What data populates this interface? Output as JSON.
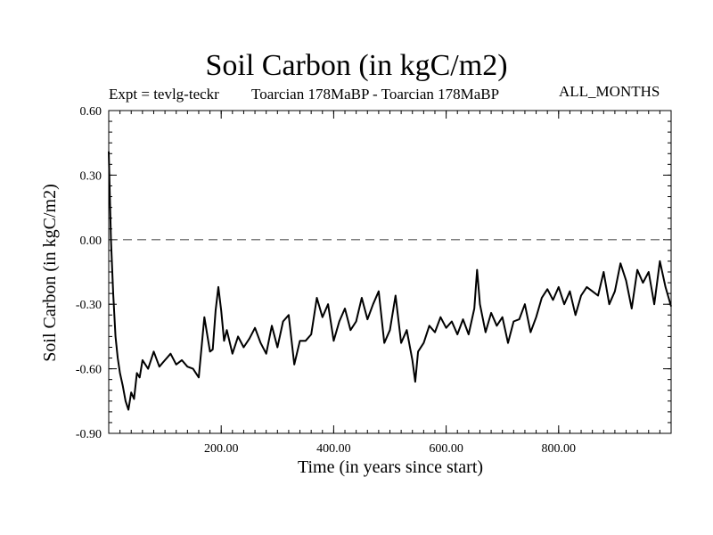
{
  "header": {
    "title": "Soil Carbon (in kgC/m2)",
    "expt": "Expt = tevlg-teckr",
    "subtitle": "Toarcian 178MaBP - Toarcian 178MaBP",
    "months": "ALL_MONTHS"
  },
  "colors": {
    "line": "#000000",
    "zero_line": "#555555",
    "background": "#ffffff"
  },
  "chart_data": {
    "type": "line",
    "title": "Soil Carbon (in kgC/m2)",
    "xlabel": "Time (in years since start)",
    "ylabel": "Soil Carbon (in kgC/m2)",
    "xlim": [
      0,
      1000
    ],
    "ylim": [
      -0.9,
      0.6
    ],
    "xticks": [
      200,
      400,
      600,
      800
    ],
    "xtick_labels": [
      "200.00",
      "400.00",
      "600.00",
      "800.00"
    ],
    "yticks": [
      0.6,
      0.3,
      0.0,
      -0.3,
      -0.6,
      -0.9
    ],
    "ytick_labels": [
      "0.60",
      "0.30",
      "0.00",
      "-0.30",
      "-0.60",
      "-0.90"
    ],
    "reference_line": {
      "y": 0.0,
      "style": "dashed"
    },
    "series": [
      {
        "name": "Soil Carbon",
        "x": [
          0,
          4,
          8,
          12,
          16,
          20,
          25,
          30,
          35,
          40,
          45,
          50,
          55,
          60,
          70,
          80,
          90,
          100,
          110,
          120,
          130,
          140,
          150,
          160,
          170,
          180,
          185,
          190,
          195,
          200,
          205,
          210,
          220,
          230,
          240,
          250,
          260,
          270,
          280,
          290,
          300,
          310,
          320,
          330,
          340,
          350,
          360,
          370,
          380,
          390,
          400,
          410,
          420,
          430,
          440,
          450,
          460,
          470,
          480,
          490,
          500,
          510,
          520,
          530,
          540,
          545,
          550,
          560,
          570,
          580,
          590,
          600,
          610,
          620,
          630,
          640,
          650,
          655,
          660,
          670,
          680,
          690,
          700,
          710,
          720,
          730,
          740,
          750,
          760,
          770,
          780,
          790,
          800,
          810,
          820,
          830,
          840,
          850,
          860,
          870,
          880,
          890,
          900,
          910,
          920,
          930,
          940,
          950,
          960,
          970,
          980,
          990,
          1000
        ],
        "y": [
          0.41,
          0.0,
          -0.25,
          -0.45,
          -0.55,
          -0.62,
          -0.68,
          -0.75,
          -0.79,
          -0.71,
          -0.74,
          -0.62,
          -0.64,
          -0.56,
          -0.6,
          -0.52,
          -0.59,
          -0.56,
          -0.53,
          -0.58,
          -0.56,
          -0.59,
          -0.6,
          -0.64,
          -0.36,
          -0.52,
          -0.51,
          -0.33,
          -0.22,
          -0.33,
          -0.47,
          -0.42,
          -0.53,
          -0.45,
          -0.5,
          -0.46,
          -0.41,
          -0.48,
          -0.53,
          -0.4,
          -0.5,
          -0.38,
          -0.35,
          -0.58,
          -0.47,
          -0.47,
          -0.44,
          -0.27,
          -0.36,
          -0.3,
          -0.47,
          -0.38,
          -0.32,
          -0.42,
          -0.38,
          -0.27,
          -0.37,
          -0.3,
          -0.24,
          -0.48,
          -0.42,
          -0.26,
          -0.48,
          -0.42,
          -0.56,
          -0.66,
          -0.52,
          -0.48,
          -0.4,
          -0.43,
          -0.36,
          -0.41,
          -0.38,
          -0.44,
          -0.37,
          -0.44,
          -0.32,
          -0.14,
          -0.3,
          -0.43,
          -0.34,
          -0.4,
          -0.36,
          -0.48,
          -0.38,
          -0.37,
          -0.3,
          -0.43,
          -0.36,
          -0.27,
          -0.23,
          -0.28,
          -0.22,
          -0.3,
          -0.24,
          -0.35,
          -0.26,
          -0.22,
          -0.24,
          -0.26,
          -0.15,
          -0.3,
          -0.24,
          -0.11,
          -0.19,
          -0.32,
          -0.14,
          -0.2,
          -0.15,
          -0.3,
          -0.1,
          -0.22,
          -0.31
        ]
      }
    ]
  }
}
